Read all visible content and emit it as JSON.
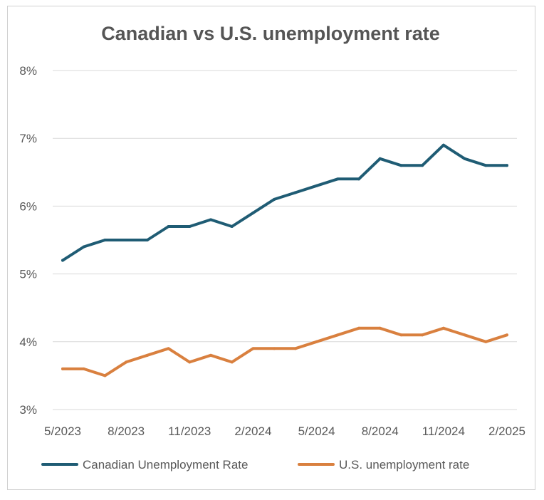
{
  "chart_data": {
    "type": "line",
    "title": "Canadian vs U.S. unemployment rate",
    "xlabel": "",
    "ylabel": "",
    "ylim": [
      3,
      8
    ],
    "ytick_labels": [
      "3%",
      "4%",
      "5%",
      "6%",
      "7%",
      "8%"
    ],
    "ytick_values": [
      3,
      4,
      5,
      6,
      7,
      8
    ],
    "x": [
      "5/2023",
      "6/2023",
      "7/2023",
      "8/2023",
      "9/2023",
      "10/2023",
      "11/2023",
      "12/2023",
      "1/2024",
      "2/2024",
      "3/2024",
      "4/2024",
      "5/2024",
      "6/2024",
      "7/2024",
      "8/2024",
      "9/2024",
      "10/2024",
      "11/2024",
      "12/2024",
      "1/2025",
      "2/2025"
    ],
    "xtick_labels": [
      "5/2023",
      "8/2023",
      "11/2023",
      "2/2024",
      "5/2024",
      "8/2024",
      "11/2024",
      "2/2025"
    ],
    "grid": true,
    "legend_position": "bottom",
    "series": [
      {
        "name": "Canadian Unemployment Rate",
        "color": "#1f5c74",
        "values": [
          5.2,
          5.4,
          5.5,
          5.5,
          5.5,
          5.7,
          5.7,
          5.8,
          5.7,
          5.9,
          6.1,
          6.2,
          6.3,
          6.4,
          6.4,
          6.7,
          6.6,
          6.6,
          6.9,
          6.7,
          6.6,
          6.6
        ]
      },
      {
        "name": "U.S. unemployment rate",
        "color": "#d9803f",
        "values": [
          3.6,
          3.6,
          3.5,
          3.7,
          3.8,
          3.9,
          3.7,
          3.8,
          3.7,
          3.9,
          3.9,
          3.9,
          4.0,
          4.1,
          4.2,
          4.2,
          4.1,
          4.1,
          4.2,
          4.1,
          4.0,
          4.1
        ]
      }
    ]
  }
}
